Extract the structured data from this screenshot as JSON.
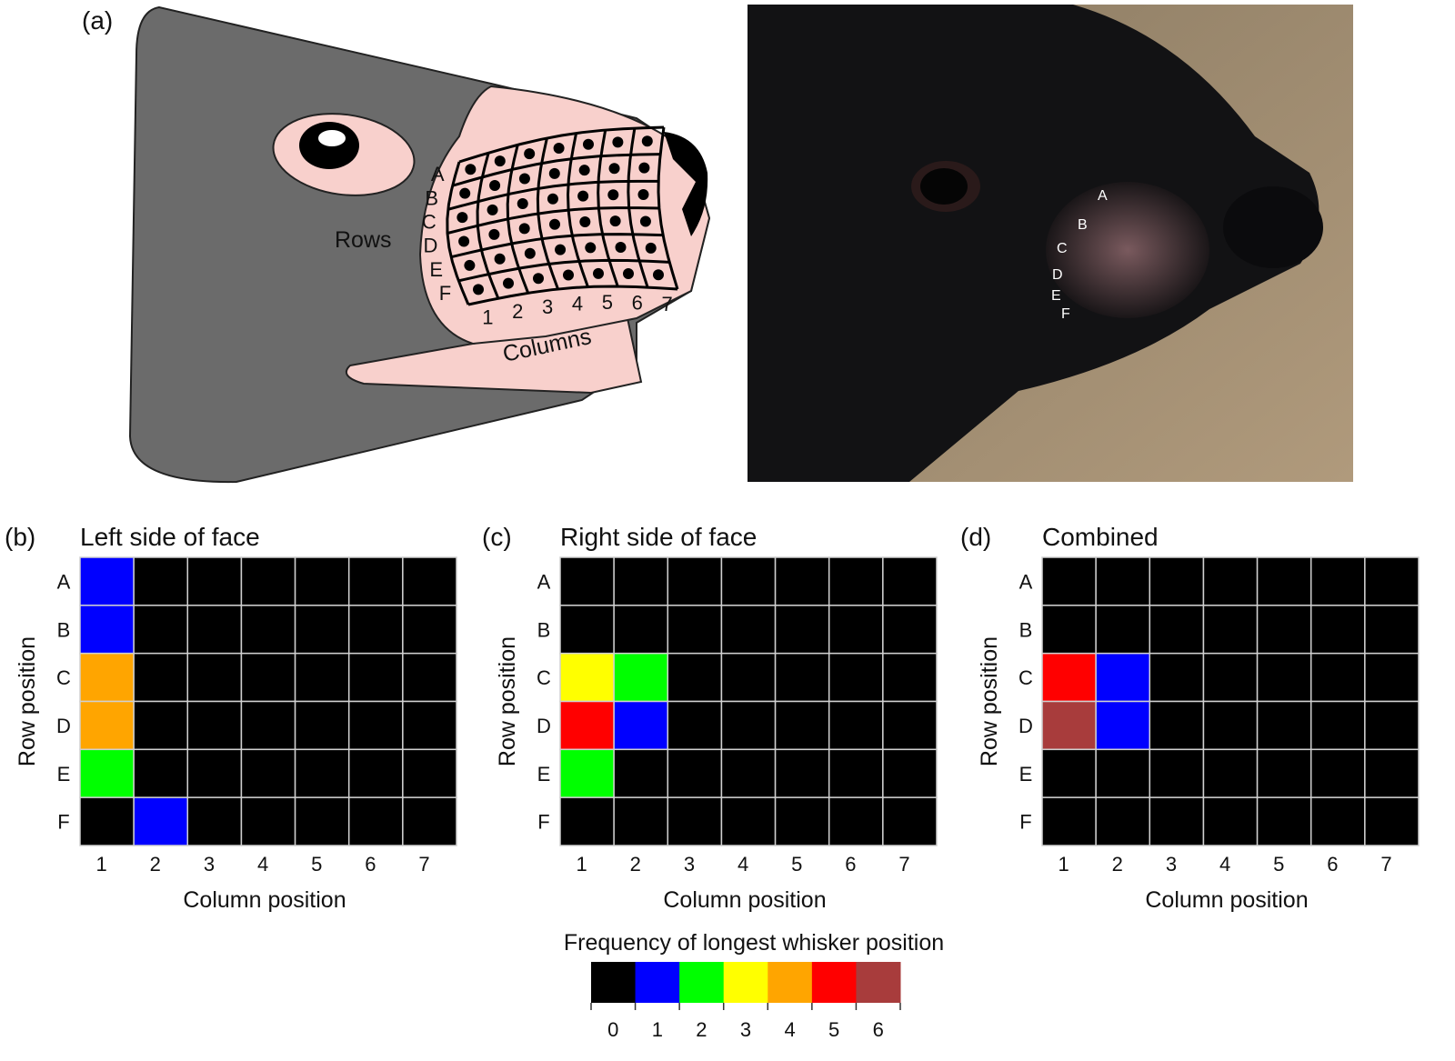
{
  "panel_a": {
    "label": "(a)",
    "rows_label": "Rows",
    "columns_label": "Columns",
    "row_letters": [
      "A",
      "B",
      "C",
      "D",
      "E",
      "F"
    ],
    "column_numbers": [
      "1",
      "2",
      "3",
      "4",
      "5",
      "6",
      "7"
    ],
    "photo_row_letters": [
      "A",
      "B",
      "C",
      "D",
      "E",
      "F"
    ]
  },
  "chart_data": [
    {
      "type": "heatmap",
      "panel": "(b)",
      "title": "Left side of face",
      "xlabel": "Column position",
      "ylabel": "Row position",
      "x": [
        "1",
        "2",
        "3",
        "4",
        "5",
        "6",
        "7"
      ],
      "y": [
        "A",
        "B",
        "C",
        "D",
        "E",
        "F"
      ],
      "values": [
        [
          1,
          0,
          0,
          0,
          0,
          0,
          0
        ],
        [
          1,
          0,
          0,
          0,
          0,
          0,
          0
        ],
        [
          4,
          0,
          0,
          0,
          0,
          0,
          0
        ],
        [
          4,
          0,
          0,
          0,
          0,
          0,
          0
        ],
        [
          2,
          0,
          0,
          0,
          0,
          0,
          0
        ],
        [
          0,
          1,
          0,
          0,
          0,
          0,
          0
        ]
      ]
    },
    {
      "type": "heatmap",
      "panel": "(c)",
      "title": "Right side of face",
      "xlabel": "Column position",
      "ylabel": "Row position",
      "x": [
        "1",
        "2",
        "3",
        "4",
        "5",
        "6",
        "7"
      ],
      "y": [
        "A",
        "B",
        "C",
        "D",
        "E",
        "F"
      ],
      "values": [
        [
          0,
          0,
          0,
          0,
          0,
          0,
          0
        ],
        [
          0,
          0,
          0,
          0,
          0,
          0,
          0
        ],
        [
          3,
          2,
          0,
          0,
          0,
          0,
          0
        ],
        [
          5,
          1,
          0,
          0,
          0,
          0,
          0
        ],
        [
          2,
          0,
          0,
          0,
          0,
          0,
          0
        ],
        [
          0,
          0,
          0,
          0,
          0,
          0,
          0
        ]
      ]
    },
    {
      "type": "heatmap",
      "panel": "(d)",
      "title": "Combined",
      "xlabel": "Column position",
      "ylabel": "Row position",
      "x": [
        "1",
        "2",
        "3",
        "4",
        "5",
        "6",
        "7"
      ],
      "y": [
        "A",
        "B",
        "C",
        "D",
        "E",
        "F"
      ],
      "values": [
        [
          0,
          0,
          0,
          0,
          0,
          0,
          0
        ],
        [
          0,
          0,
          0,
          0,
          0,
          0,
          0
        ],
        [
          5,
          1,
          0,
          0,
          0,
          0,
          0
        ],
        [
          6,
          1,
          0,
          0,
          0,
          0,
          0
        ],
        [
          0,
          0,
          0,
          0,
          0,
          0,
          0
        ],
        [
          0,
          0,
          0,
          0,
          0,
          0,
          0
        ]
      ]
    }
  ],
  "colorbar": {
    "title": "Frequency of longest whisker position",
    "ticks": [
      "0",
      "1",
      "2",
      "3",
      "4",
      "5",
      "6"
    ],
    "colors": [
      "#000000",
      "#0000ff",
      "#00ff00",
      "#ffff00",
      "#ffa500",
      "#ff0000",
      "#a83c3c"
    ]
  }
}
